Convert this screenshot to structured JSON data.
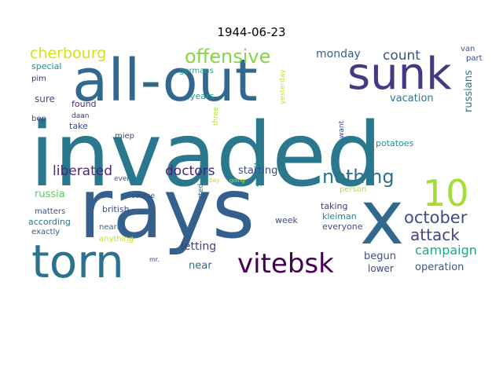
{
  "title": "1944-06-23",
  "words": [
    {
      "text": "invaded",
      "color": "#2a788e"
    },
    {
      "text": "rays",
      "color": "#35608d"
    },
    {
      "text": "all-out",
      "color": "#31688e"
    },
    {
      "text": "sunk",
      "color": "#443983"
    },
    {
      "text": "x",
      "color": "#31688e"
    },
    {
      "text": "torn",
      "color": "#2c718e"
    },
    {
      "text": "10",
      "color": "#a5db36"
    },
    {
      "text": "vitebsk",
      "color": "#440154"
    },
    {
      "text": "offensive",
      "color": "#86d549"
    },
    {
      "text": "nothing",
      "color": "#2c728e"
    },
    {
      "text": "cherbourg",
      "color": "#d2e21b"
    },
    {
      "text": "october",
      "color": "#3e4a89"
    },
    {
      "text": "attack",
      "color": "#414487"
    },
    {
      "text": "liberated",
      "color": "#482878"
    },
    {
      "text": "doctors",
      "color": "#482475"
    },
    {
      "text": "count",
      "color": "#3b518b"
    },
    {
      "text": "campaign",
      "color": "#22a884"
    },
    {
      "text": "monday",
      "color": "#35608d"
    },
    {
      "text": "vacation",
      "color": "#29798e"
    },
    {
      "text": "russians",
      "color": "#2a788e"
    },
    {
      "text": "starting",
      "color": "#3e4989"
    },
    {
      "text": "spirits",
      "color": "#26828e"
    },
    {
      "text": "letting",
      "color": "#433e85"
    },
    {
      "text": "begun",
      "color": "#3b528b"
    },
    {
      "text": "operation",
      "color": "#39568c"
    },
    {
      "text": "lower",
      "color": "#414487"
    },
    {
      "text": "near",
      "color": "#2e6e8e"
    },
    {
      "text": "russia",
      "color": "#5ec962"
    },
    {
      "text": "sure",
      "color": "#3b528b"
    },
    {
      "text": "found",
      "color": "#472d7b"
    },
    {
      "text": "take",
      "color": "#3e4a89"
    },
    {
      "text": "special",
      "color": "#21918c"
    },
    {
      "text": "pim",
      "color": "#46337f"
    },
    {
      "text": "bep",
      "color": "#433e85"
    },
    {
      "text": "daan",
      "color": "#46327e"
    },
    {
      "text": "miep",
      "color": "#3f4788"
    },
    {
      "text": "germans",
      "color": "#20a386"
    },
    {
      "text": "years",
      "color": "#1f9e89"
    },
    {
      "text": "three",
      "color": "#b5de2b"
    },
    {
      "text": "day",
      "color": "#bddf26"
    },
    {
      "text": "yesterday",
      "color": "#d8e219"
    },
    {
      "text": "want",
      "color": "#404688"
    },
    {
      "text": "potatoes",
      "color": "#1f968b"
    },
    {
      "text": "person",
      "color": "#bddf26"
    },
    {
      "text": "van",
      "color": "#3a548c"
    },
    {
      "text": "part",
      "color": "#3b528b"
    },
    {
      "text": "going",
      "color": "#c2df23"
    },
    {
      "text": "course",
      "color": "#414487"
    },
    {
      "text": "british",
      "color": "#3e4a89"
    },
    {
      "text": "matters",
      "color": "#3e4c8a"
    },
    {
      "text": "according",
      "color": "#2a768e"
    },
    {
      "text": "exactly",
      "color": "#38588c"
    },
    {
      "text": "ever",
      "color": "#39558c"
    },
    {
      "text": "nearly",
      "color": "#2d708e"
    },
    {
      "text": "anything",
      "color": "#c8e020"
    },
    {
      "text": "mr.",
      "color": "#424086"
    },
    {
      "text": "started",
      "color": "#2e6e8e"
    },
    {
      "text": "week",
      "color": "#3e4a89"
    },
    {
      "text": "taking",
      "color": "#443a83"
    },
    {
      "text": "kleiman",
      "color": "#25848e"
    },
    {
      "text": "everyone",
      "color": "#3e4c8a"
    }
  ]
}
